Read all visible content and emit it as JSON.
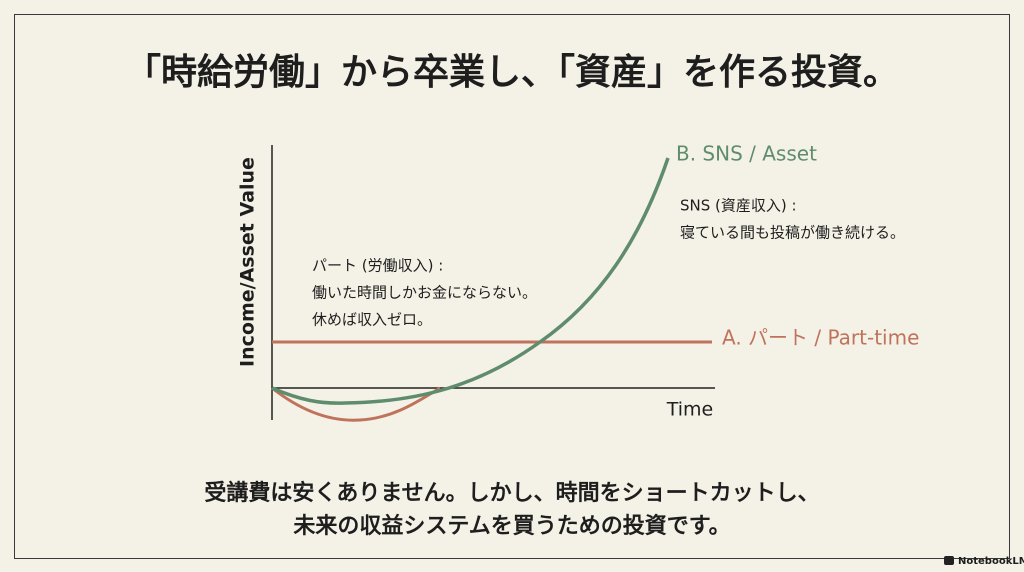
{
  "header": {
    "title": "「時給労働」から卒業し、「資産」を作る投資。"
  },
  "diagram": {
    "y_axis_label": "Income/Asset Value",
    "x_axis_label": "Time",
    "series_a_label": "A. パート / Part-time",
    "series_b_label": "B. SNS / Asset",
    "note_a": [
      "パート (労働収入) :",
      "働いた時間しかお金にならない。",
      "休めば収入ゼロ。"
    ],
    "note_b": [
      "SNS (資産収入) :",
      "寝ている間も投稿が働き続ける。"
    ]
  },
  "footer": {
    "lines": [
      "受講費は安くありません。しかし、時間をショートカットし、",
      "未来の収益システムを買うための投資です。"
    ],
    "watermark": "NotebookLM"
  }
}
